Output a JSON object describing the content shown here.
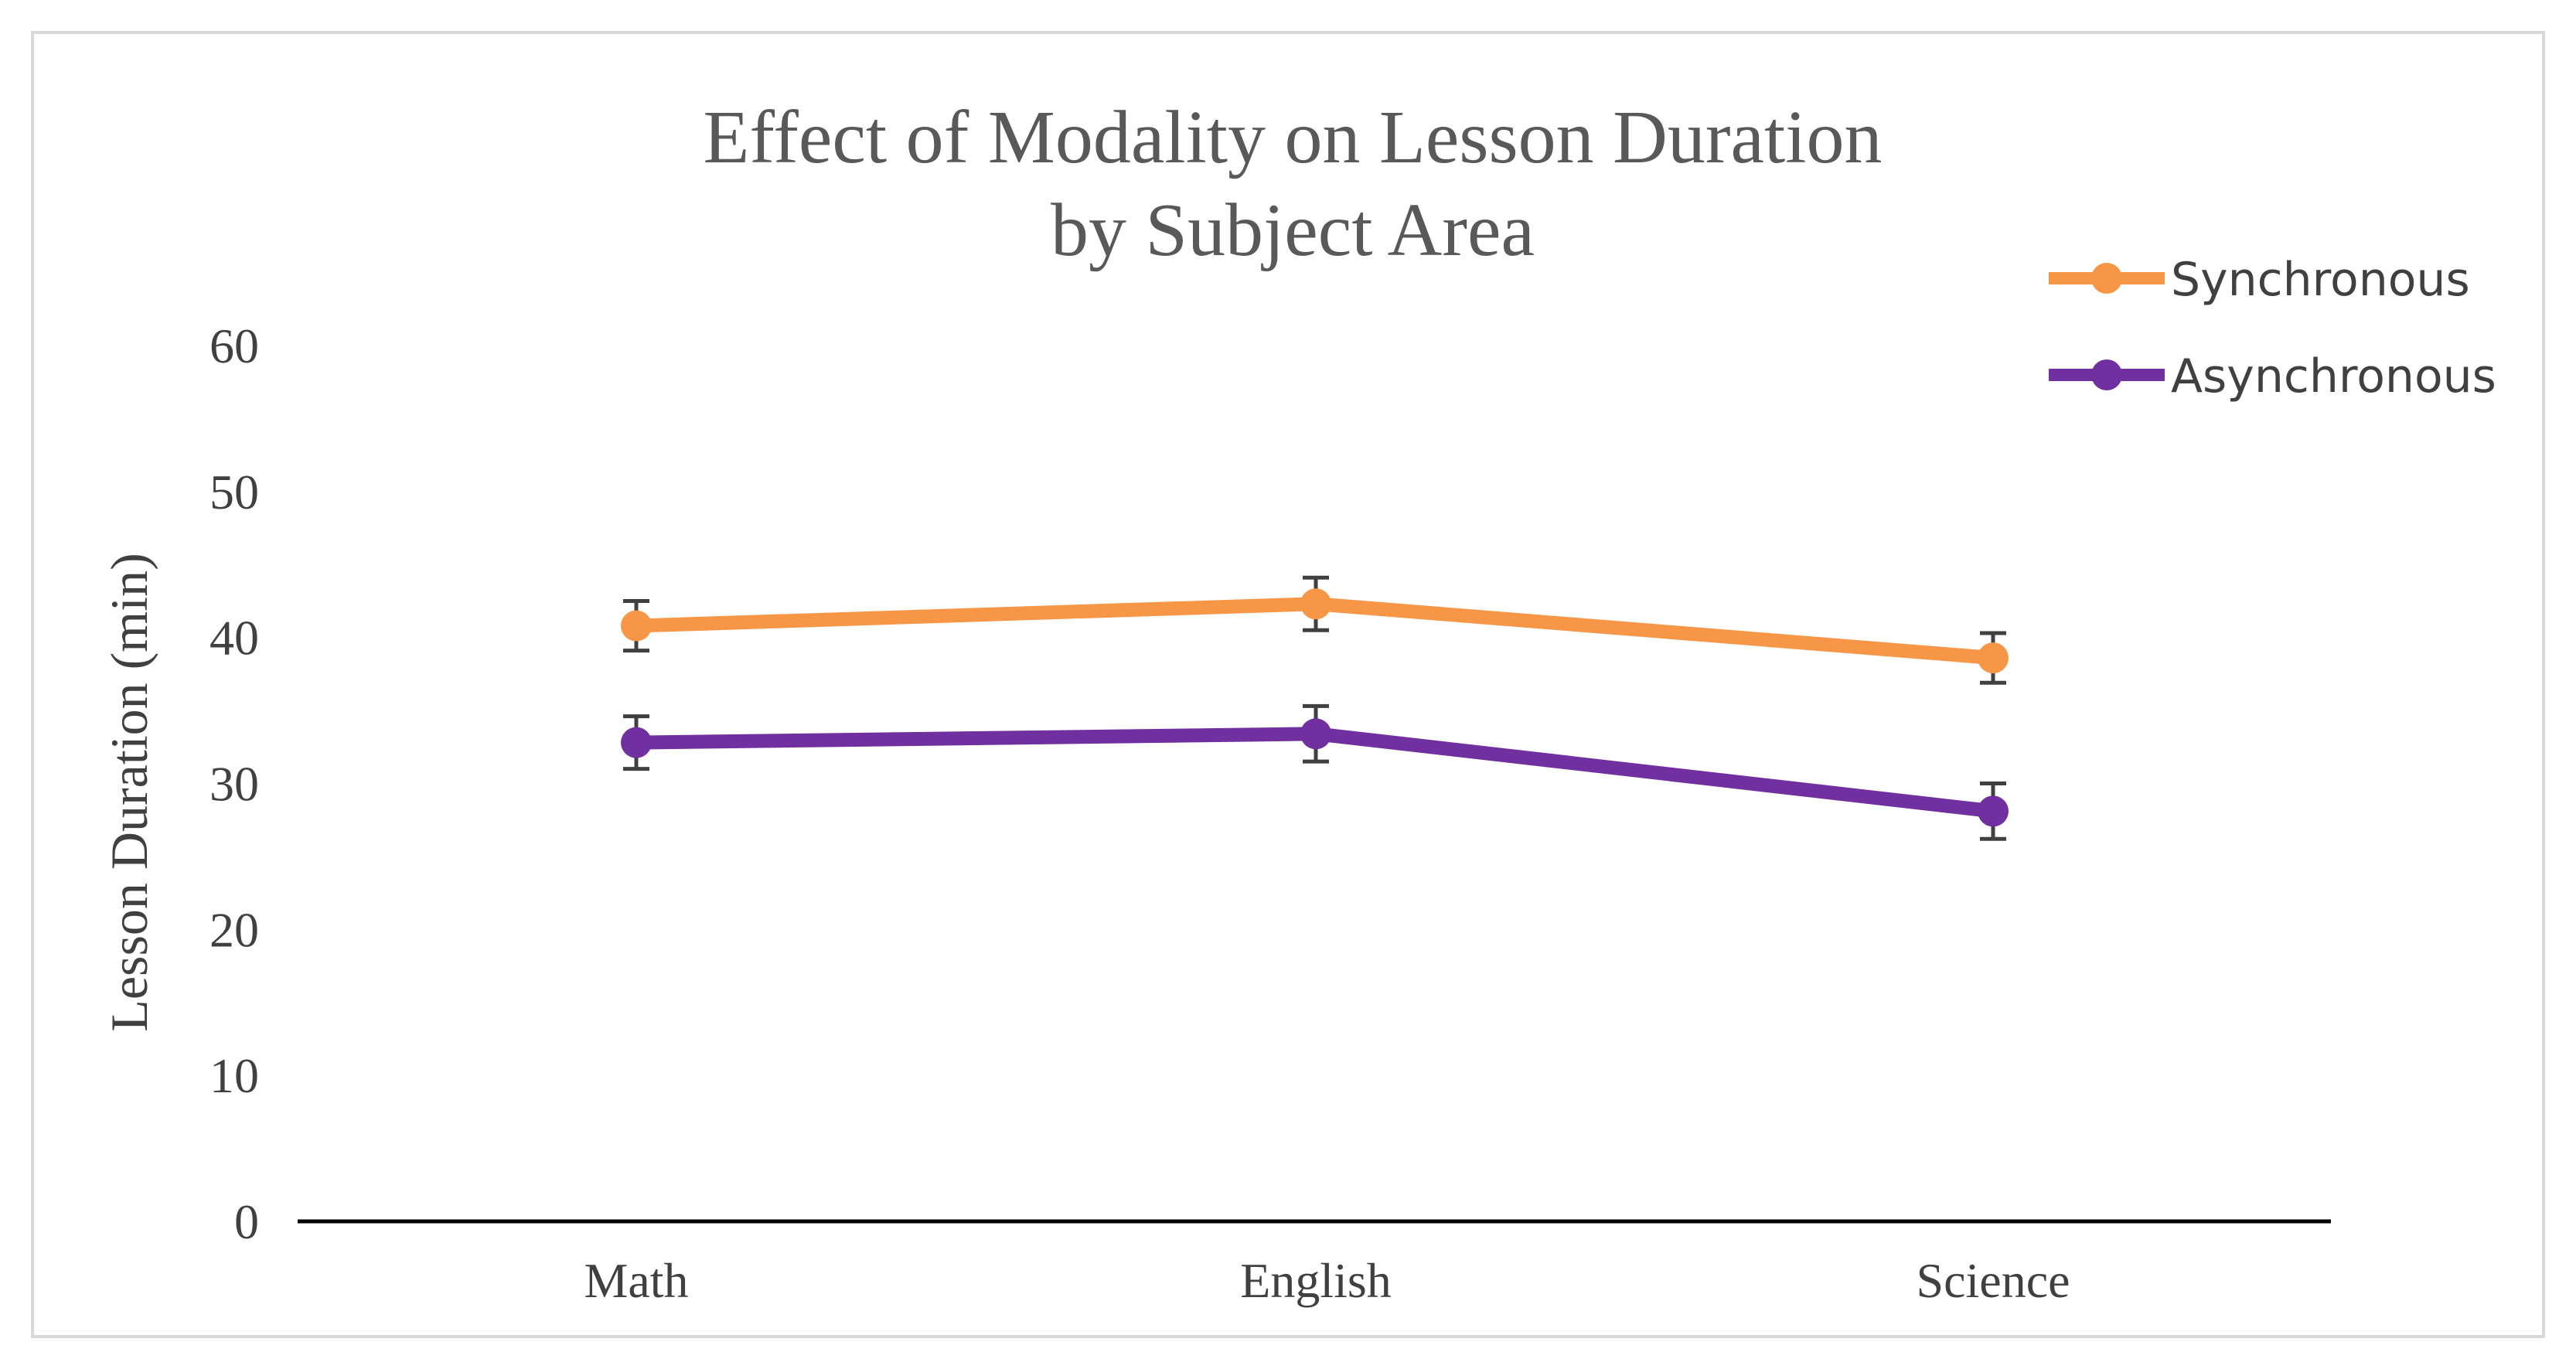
{
  "chart_data": {
    "type": "line",
    "title_lines": [
      "Effect of Modality on Lesson Duration",
      "by Subject Area"
    ],
    "xlabel": "",
    "ylabel": "Lesson Duration (min)",
    "categories": [
      "Math",
      "English",
      "Science"
    ],
    "ylim": [
      0,
      60
    ],
    "yticks": [
      0,
      10,
      20,
      30,
      40,
      50,
      60
    ],
    "grid": false,
    "legend_position": "top-right",
    "series": [
      {
        "name": "Synchronous",
        "color": "#F79646",
        "values": [
          40.8,
          42.3,
          38.6
        ],
        "errors": [
          1.7,
          1.8,
          1.7
        ]
      },
      {
        "name": "Asynchronous",
        "color": "#7030A0",
        "values": [
          32.8,
          33.4,
          28.1
        ],
        "errors": [
          1.8,
          1.9,
          1.9
        ]
      }
    ],
    "axis_color": "#000000",
    "text_color": "#404040",
    "errorbar_color": "#404040",
    "border_color": "#D9D9D9"
  }
}
